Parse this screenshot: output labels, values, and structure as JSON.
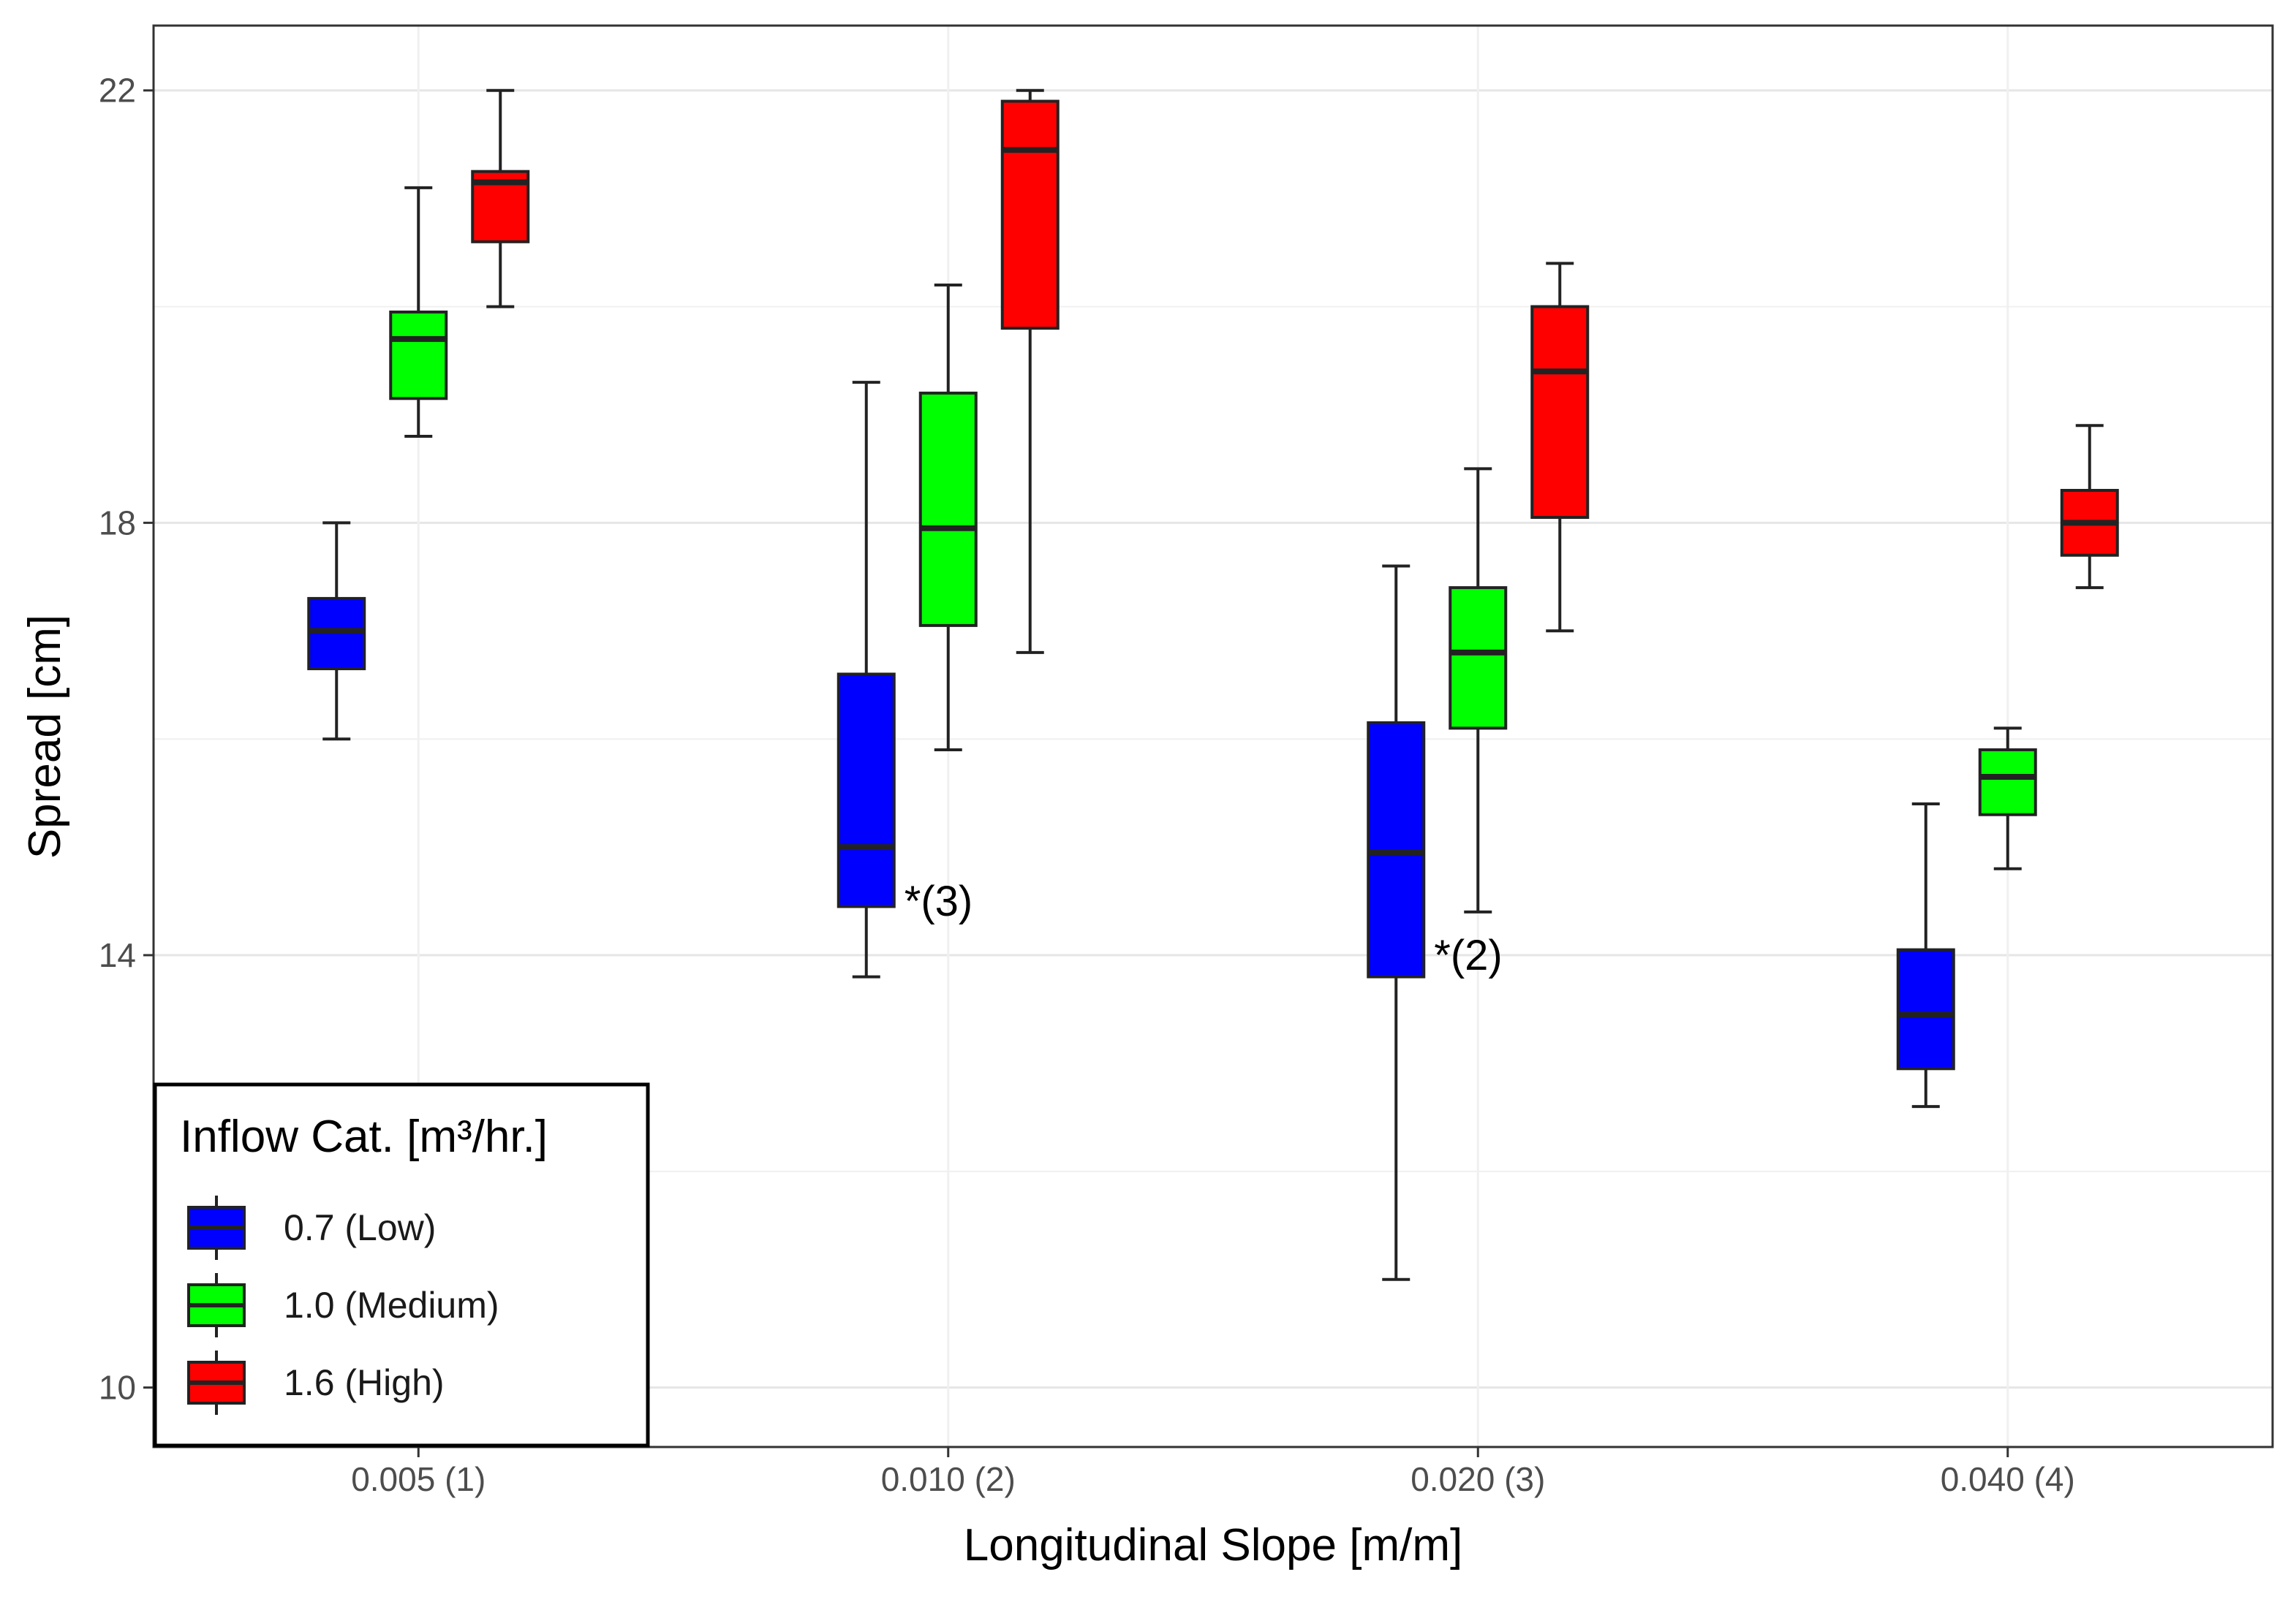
{
  "chart_data": {
    "type": "boxplot",
    "title": "",
    "xlabel": "Longitudinal Slope [m/m]",
    "ylabel": "Spread [cm]",
    "ylim": [
      9.45,
      22.6
    ],
    "yticks": [
      10,
      14,
      18,
      22
    ],
    "grid": true,
    "categories": [
      "0.005 (1)",
      "0.010 (2)",
      "0.020 (3)",
      "0.040 (4)"
    ],
    "legend": {
      "title": "Inflow Cat. [m³/hr.]",
      "position": "bottom-left"
    },
    "series": [
      {
        "name": "0.7 (Low)",
        "color": "#0000ff",
        "boxes": [
          {
            "min": 16.0,
            "q1": 16.65,
            "median": 17.0,
            "q3": 17.3,
            "max": 18.0
          },
          {
            "min": 13.8,
            "q1": 14.45,
            "median": 15.0,
            "q3": 16.6,
            "max": 19.3
          },
          {
            "min": 11.0,
            "q1": 13.8,
            "median": 14.95,
            "q3": 16.15,
            "max": 17.6
          },
          {
            "min": 12.6,
            "q1": 12.95,
            "median": 13.45,
            "q3": 14.05,
            "max": 15.4
          }
        ]
      },
      {
        "name": "1.0 (Medium)",
        "color": "#00ff00",
        "boxes": [
          {
            "min": 18.8,
            "q1": 19.15,
            "median": 19.7,
            "q3": 19.95,
            "max": 21.1
          },
          {
            "min": 15.9,
            "q1": 17.05,
            "median": 17.95,
            "q3": 19.2,
            "max": 20.2
          },
          {
            "min": 14.4,
            "q1": 16.1,
            "median": 16.8,
            "q3": 17.4,
            "max": 18.5
          },
          {
            "min": 14.8,
            "q1": 15.3,
            "median": 15.65,
            "q3": 15.9,
            "max": 16.1
          }
        ]
      },
      {
        "name": "1.6 (High)",
        "color": "#ff0000",
        "boxes": [
          {
            "min": 20.0,
            "q1": 20.6,
            "median": 21.15,
            "q3": 21.25,
            "max": 22.0
          },
          {
            "min": 16.8,
            "q1": 19.8,
            "median": 21.45,
            "q3": 21.9,
            "max": 22.0
          },
          {
            "min": 17.0,
            "q1": 18.05,
            "median": 19.4,
            "q3": 20.0,
            "max": 20.4
          },
          {
            "min": 17.4,
            "q1": 17.7,
            "median": 18.0,
            "q3": 18.3,
            "max": 18.9
          }
        ]
      }
    ],
    "annotations": [
      {
        "text": "*(3)",
        "category": "0.010 (2)",
        "y": 14.5
      },
      {
        "text": "*(2)",
        "category": "0.020 (3)",
        "y": 14.0
      }
    ]
  }
}
